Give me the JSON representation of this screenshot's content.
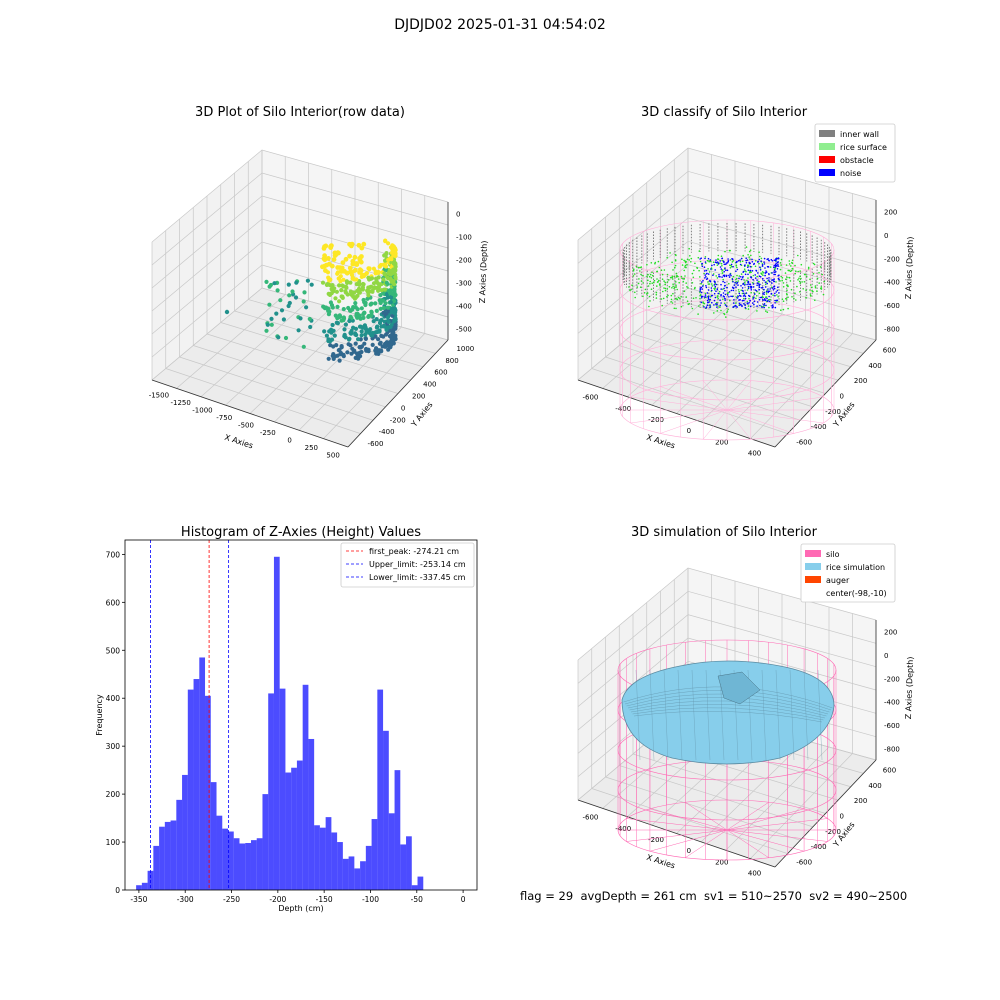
{
  "figure": {
    "suptitle": "DJDJD02 2025-01-31 04:54:02",
    "footer": "flag = 29  avgDepth = 261 cm  sv1 = 510~2570  sv2 = 490~2500"
  },
  "panels": {
    "raw": {
      "title": "3D Plot of Silo Interior(row data)",
      "xlabel": "X Axies",
      "ylabel": "Y Axies",
      "zlabel": "Z Axies (Depth)",
      "x_ticks": [
        "-1500",
        "-1250",
        "-1000",
        "-750",
        "-500",
        "-250",
        "0",
        "250",
        "500"
      ],
      "y_ticks": [
        "-600",
        "-400",
        "-200",
        "0",
        "200",
        "400",
        "600",
        "800",
        "1000"
      ],
      "z_ticks": [
        "0",
        "-100",
        "-200",
        "-300",
        "-400",
        "-500"
      ],
      "colormap": [
        "#440154",
        "#31688e",
        "#21918c",
        "#35b779",
        "#90d743",
        "#fde725"
      ]
    },
    "classify": {
      "title": "3D classify of Silo Interior",
      "xlabel": "X Axies",
      "ylabel": "Y Axies",
      "zlabel": "Z Axies (Depth)",
      "x_ticks": [
        "-600",
        "-400",
        "-200",
        "0",
        "200",
        "400"
      ],
      "y_ticks": [
        "-600",
        "-400",
        "-200",
        "0",
        "200",
        "400",
        "600"
      ],
      "z_ticks": [
        "200",
        "0",
        "-200",
        "-400",
        "-600",
        "-800"
      ],
      "legend": [
        {
          "label": "inner wall",
          "color": "#808080"
        },
        {
          "label": "rice surface",
          "color": "#90ee90"
        },
        {
          "label": "obstacle",
          "color": "#ff0000"
        },
        {
          "label": "noise",
          "color": "#0000ff"
        }
      ]
    },
    "simulation": {
      "title": "3D simulation of Silo Interior",
      "xlabel": "X Axies",
      "ylabel": "Y Axies",
      "zlabel": "Z Axies (Depth)",
      "x_ticks": [
        "-600",
        "-400",
        "-200",
        "0",
        "200",
        "400"
      ],
      "y_ticks": [
        "-600",
        "-400",
        "-200",
        "0",
        "200",
        "400",
        "600"
      ],
      "z_ticks": [
        "200",
        "0",
        "-200",
        "-400",
        "-600",
        "-800"
      ],
      "legend": [
        {
          "label": "silo",
          "color": "#ff69b4"
        },
        {
          "label": "rice simulation",
          "color": "#87ceeb"
        },
        {
          "label": "auger",
          "color": "#ff4500"
        },
        {
          "label": "center(-98,-10)",
          "color": "#ffffff"
        }
      ]
    }
  },
  "chart_data": {
    "type": "bar",
    "title": "Histogram of Z-Axies (Height) Values",
    "xlabel": "Depth (cm)",
    "ylabel": "Frequency",
    "xlim": [
      -365,
      15
    ],
    "ylim": [
      0,
      730
    ],
    "x_ticks": [
      -350,
      -300,
      -250,
      -200,
      -150,
      -100,
      -50,
      0
    ],
    "y_ticks": [
      0,
      100,
      200,
      300,
      400,
      500,
      600,
      700
    ],
    "bin_start": -353,
    "bin_width": 6.2,
    "bar_color": "#0000ff",
    "values": [
      10,
      15,
      40,
      92,
      132,
      142,
      145,
      188,
      240,
      418,
      440,
      485,
      405,
      225,
      155,
      128,
      122,
      108,
      97,
      98,
      104,
      108,
      200,
      410,
      695,
      420,
      245,
      255,
      270,
      428,
      315,
      135,
      130,
      152,
      120,
      100,
      65,
      70,
      45,
      60,
      92,
      148,
      418,
      332,
      160,
      250,
      95,
      112,
      10,
      28
    ],
    "vlines": [
      {
        "label": "first_peak: -274.21 cm",
        "x": -274.21,
        "color": "#ff0000"
      },
      {
        "label": "Upper_limit: -253.14 cm",
        "x": -253.14,
        "color": "#0000ff"
      },
      {
        "label": "Lower_limit: -337.45 cm",
        "x": -337.45,
        "color": "#0000ff"
      }
    ],
    "grid": false,
    "legend_position": "top-right"
  }
}
